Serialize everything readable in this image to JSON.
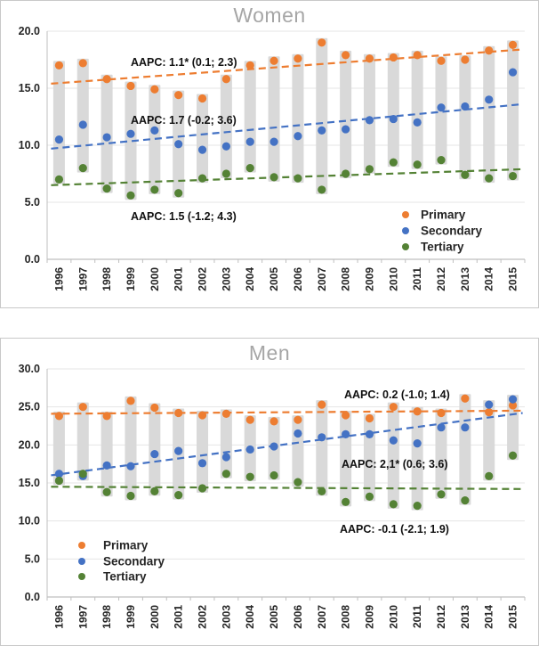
{
  "chart_data": [
    {
      "type": "scatter",
      "title": "Women",
      "categories": [
        "1996",
        "1997",
        "1998",
        "1999",
        "2000",
        "2001",
        "2002",
        "2003",
        "2004",
        "2005",
        "2006",
        "2007",
        "2008",
        "2009",
        "2010",
        "2011",
        "2012",
        "2013",
        "2014",
        "2015"
      ],
      "series": [
        {
          "name": "Primary",
          "color": "#ED7D31",
          "values": [
            17.0,
            17.2,
            15.8,
            15.2,
            14.9,
            14.4,
            14.1,
            15.8,
            17.0,
            17.4,
            17.6,
            19.0,
            17.9,
            17.6,
            17.7,
            17.9,
            17.4,
            17.5,
            18.3,
            18.8
          ]
        },
        {
          "name": "Secondary",
          "color": "#4472C4",
          "values": [
            10.5,
            11.8,
            10.7,
            11.0,
            11.3,
            10.1,
            9.6,
            9.9,
            10.3,
            10.3,
            10.8,
            11.3,
            11.4,
            12.2,
            12.3,
            12.0,
            13.3,
            13.4,
            14.0,
            16.4
          ]
        },
        {
          "name": "Tertiary",
          "color": "#548235",
          "values": [
            7.0,
            8.0,
            6.2,
            5.6,
            6.1,
            5.8,
            7.1,
            7.5,
            8.0,
            7.2,
            7.1,
            6.1,
            7.5,
            7.9,
            8.5,
            8.3,
            8.7,
            7.4,
            7.1,
            7.3
          ]
        }
      ],
      "trend_lines": [
        {
          "series": "Primary",
          "color": "#ED7D31",
          "start": 15.4,
          "end": 18.4,
          "aapc_label": "AAPC: 1.1* (0.1; 2.3)"
        },
        {
          "series": "Secondary",
          "color": "#4472C4",
          "start": 9.7,
          "end": 13.6,
          "aapc_label": "AAPC: 1.7 (-0.2; 3.6)"
        },
        {
          "series": "Tertiary",
          "color": "#548235",
          "start": 6.5,
          "end": 7.9,
          "aapc_label": "AAPC: 1.5 (-1.2; 4.3)"
        }
      ],
      "range_bars": true,
      "range_bar_color": "#D9D9D9",
      "ylim": [
        0,
        20
      ],
      "ytick_labels": [
        "0.0",
        "5.0",
        "10.0",
        "15.0",
        "20.0"
      ],
      "grid": true,
      "legend": {
        "items": [
          "Primary",
          "Secondary",
          "Tertiary"
        ],
        "position": "lower-right"
      }
    },
    {
      "type": "scatter",
      "title": "Men",
      "categories": [
        "1996",
        "1997",
        "1998",
        "1999",
        "2000",
        "2001",
        "2002",
        "2003",
        "2004",
        "2005",
        "2006",
        "2007",
        "2008",
        "2009",
        "2010",
        "2011",
        "2012",
        "2013",
        "2014",
        "2015"
      ],
      "series": [
        {
          "name": "Primary",
          "color": "#ED7D31",
          "values": [
            23.8,
            25.0,
            23.8,
            25.8,
            24.9,
            24.2,
            23.9,
            24.1,
            23.3,
            23.1,
            23.3,
            25.3,
            23.9,
            23.5,
            25.0,
            24.4,
            24.2,
            26.1,
            24.3,
            25.2
          ]
        },
        {
          "name": "Secondary",
          "color": "#4472C4",
          "values": [
            16.2,
            15.9,
            17.3,
            17.2,
            18.8,
            19.2,
            17.6,
            18.4,
            19.4,
            19.8,
            21.5,
            21.0,
            21.4,
            21.4,
            20.6,
            20.2,
            22.3,
            22.3,
            25.3,
            26.0
          ]
        },
        {
          "name": "Tertiary",
          "color": "#548235",
          "values": [
            15.3,
            16.2,
            13.8,
            13.3,
            13.9,
            13.4,
            14.3,
            16.2,
            15.8,
            16.0,
            15.1,
            13.9,
            12.5,
            13.2,
            12.2,
            12.0,
            13.5,
            12.7,
            15.9,
            18.6
          ]
        }
      ],
      "trend_lines": [
        {
          "series": "Primary",
          "color": "#ED7D31",
          "start": 24.1,
          "end": 24.5,
          "aapc_label": "AAPC: 0.2 (-1.0; 1.4)"
        },
        {
          "series": "Secondary",
          "color": "#4472C4",
          "start": 16.0,
          "end": 24.2,
          "aapc_label": "AAPC: 2,1* (0.6; 3.6)"
        },
        {
          "series": "Tertiary",
          "color": "#548235",
          "start": 14.5,
          "end": 14.2,
          "aapc_label": "AAPC: -0.1 (-2.1; 1.9)"
        }
      ],
      "range_bars": true,
      "range_bar_color": "#D9D9D9",
      "ylim": [
        0,
        30
      ],
      "ytick_labels": [
        "0.0",
        "5.0",
        "10.0",
        "15.0",
        "20.0",
        "25.0",
        "30.0"
      ],
      "grid": true,
      "legend": {
        "items": [
          "Primary",
          "Secondary",
          "Tertiary"
        ],
        "position": "lower-left"
      }
    }
  ],
  "colors": {
    "primary": "#ED7D31",
    "secondary": "#4472C4",
    "tertiary": "#548235",
    "range_bar": "#D9D9D9",
    "gridline": "#E4E4E4",
    "axis": "#BFBFBF",
    "title_text": "#A6A6A6",
    "tick_text": "#262626",
    "annotation_text": "#111111"
  }
}
